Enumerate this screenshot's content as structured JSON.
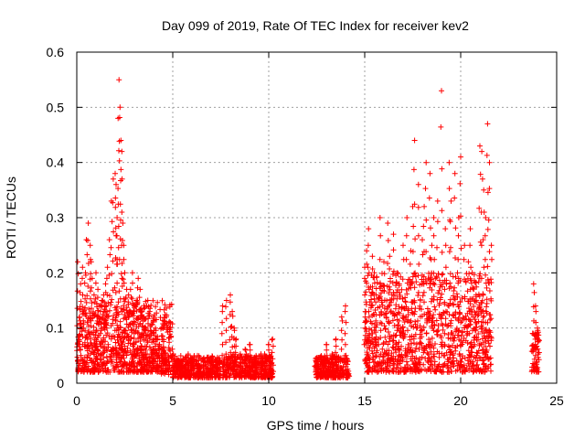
{
  "chart_data": {
    "type": "scatter",
    "title": "Day 099 of 2019, Rate Of TEC Index for receiver kev2",
    "xlabel": "GPS time / hours",
    "ylabel": "ROTI / TECUs",
    "xlim": [
      0,
      25
    ],
    "ylim": [
      0,
      0.6
    ],
    "xticks": [
      0,
      5,
      10,
      15,
      20,
      25
    ],
    "xtick_labels": [
      "0",
      "5",
      "10",
      "15",
      "20",
      "25"
    ],
    "yticks": [
      0,
      0.1,
      0.2,
      0.3,
      0.4,
      0.5,
      0.6
    ],
    "ytick_labels": [
      "0",
      "0.1",
      "0.2",
      "0.3",
      "0.4",
      "0.5",
      "0.6"
    ],
    "grid": true,
    "marker": "plus",
    "series": [
      {
        "name": "ROTI",
        "color": "#ff0000",
        "x": [
          0.05,
          0.2,
          0.3,
          0.45,
          0.5,
          0.6,
          0.7,
          0.75,
          0.8,
          0.9,
          1.0,
          1.05,
          1.1,
          1.2,
          1.3,
          1.4,
          1.5,
          1.6,
          1.7,
          1.8,
          1.9,
          2.0,
          2.05,
          2.1,
          2.15,
          2.2,
          2.25,
          2.3,
          2.35,
          2.4,
          2.45,
          2.5,
          2.6,
          2.7,
          2.8,
          2.9,
          3.0,
          3.1,
          3.2,
          3.3,
          3.4,
          3.5,
          3.6,
          3.7,
          3.8,
          3.9,
          4.0,
          4.1,
          4.2,
          4.3,
          4.4,
          4.5,
          4.6,
          4.8,
          5.0,
          5.2,
          5.5,
          5.8,
          6.0,
          6.3,
          6.6,
          7.0,
          7.3,
          7.6,
          7.8,
          8.0,
          8.1,
          8.2,
          8.3,
          8.5,
          8.8,
          9.0,
          9.3,
          9.6,
          9.8,
          10.0,
          10.2,
          12.5,
          12.8,
          13.0,
          13.3,
          13.5,
          13.8,
          14.0,
          15.0,
          15.1,
          15.2,
          15.4,
          15.5,
          15.6,
          15.8,
          16.0,
          16.2,
          16.3,
          16.5,
          16.7,
          16.8,
          17.0,
          17.2,
          17.4,
          17.5,
          17.6,
          17.8,
          18.0,
          18.1,
          18.2,
          18.4,
          18.5,
          18.6,
          18.8,
          19.0,
          19.2,
          19.4,
          19.5,
          19.7,
          19.9,
          20.0,
          20.2,
          20.4,
          20.5,
          20.6,
          20.8,
          21.0,
          21.1,
          21.2,
          21.3,
          21.4,
          21.5,
          21.6,
          23.8,
          23.9,
          24.0
        ],
        "y": [
          0.22,
          0.18,
          0.21,
          0.2,
          0.26,
          0.29,
          0.25,
          0.22,
          0.19,
          0.16,
          0.2,
          0.12,
          0.17,
          0.14,
          0.15,
          0.16,
          0.18,
          0.21,
          0.26,
          0.33,
          0.37,
          0.38,
          0.36,
          0.3,
          0.48,
          0.55,
          0.5,
          0.44,
          0.42,
          0.29,
          0.25,
          0.2,
          0.17,
          0.16,
          0.17,
          0.2,
          0.14,
          0.15,
          0.19,
          0.17,
          0.13,
          0.12,
          0.1,
          0.15,
          0.13,
          0.09,
          0.12,
          0.1,
          0.08,
          0.07,
          0.05,
          0.06,
          0.05,
          0.04,
          0.05,
          0.04,
          0.04,
          0.05,
          0.04,
          0.03,
          0.04,
          0.04,
          0.04,
          0.14,
          0.15,
          0.16,
          0.13,
          0.1,
          0.08,
          0.05,
          0.06,
          0.07,
          0.04,
          0.05,
          0.05,
          0.07,
          0.08,
          0.04,
          0.04,
          0.07,
          0.05,
          0.08,
          0.12,
          0.14,
          0.21,
          0.24,
          0.28,
          0.23,
          0.2,
          0.16,
          0.3,
          0.22,
          0.29,
          0.23,
          0.27,
          0.2,
          0.18,
          0.25,
          0.3,
          0.24,
          0.32,
          0.44,
          0.36,
          0.26,
          0.32,
          0.4,
          0.38,
          0.25,
          0.3,
          0.33,
          0.53,
          0.28,
          0.4,
          0.33,
          0.38,
          0.3,
          0.41,
          0.25,
          0.22,
          0.28,
          0.2,
          0.16,
          0.43,
          0.42,
          0.35,
          0.3,
          0.47,
          0.4,
          0.25,
          0.18,
          0.14,
          0.1
        ],
        "density_bands": [
          {
            "x": [
              0.0,
              5.0
            ],
            "y": [
              0.02,
              0.15
            ]
          },
          {
            "x": [
              5.0,
              7.5
            ],
            "y": [
              0.01,
              0.05
            ]
          },
          {
            "x": [
              7.6,
              10.2
            ],
            "y": [
              0.01,
              0.05
            ]
          },
          {
            "x": [
              12.4,
              14.2
            ],
            "y": [
              0.01,
              0.05
            ]
          },
          {
            "x": [
              15.0,
              21.6
            ],
            "y": [
              0.02,
              0.2
            ]
          },
          {
            "x": [
              23.7,
              24.1
            ],
            "y": [
              0.02,
              0.1
            ]
          }
        ]
      }
    ]
  }
}
